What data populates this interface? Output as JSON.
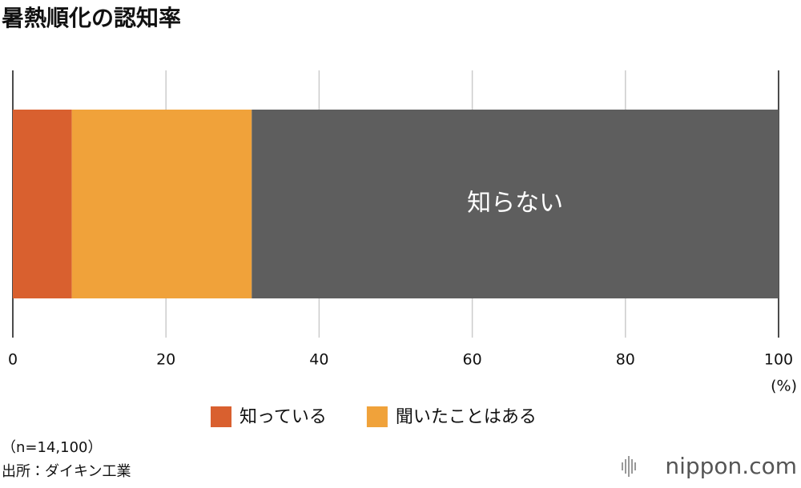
{
  "chart_data": {
    "type": "stacked-bar",
    "orientation": "horizontal",
    "title": "暑熱順化の認知率",
    "categories": [
      null
    ],
    "series": [
      {
        "name": "知っている",
        "color": "#d9602f",
        "values": [
          7.7
        ],
        "legend": true
      },
      {
        "name": "聞いたことはある",
        "color": "#f0a23a",
        "values": [
          23.5
        ],
        "legend": true
      },
      {
        "name": "知らない",
        "color": "#5e5e5e",
        "values": [
          68.8
        ],
        "legend": false,
        "label_inside": true
      }
    ],
    "xlim": [
      0,
      100
    ],
    "xticks": [
      0,
      20,
      40,
      60,
      80,
      100
    ],
    "grid": true,
    "x_unit": "(%)",
    "note": "（n=14,100）",
    "source": "出所：ダイキン工業",
    "logo": "nippon.com"
  }
}
